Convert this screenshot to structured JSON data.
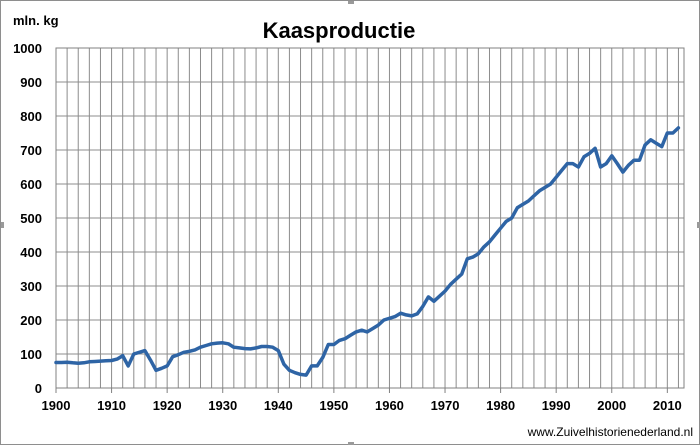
{
  "chart_data": {
    "type": "line",
    "title": "Kaasproductie",
    "ylabel": "mln. kg",
    "xlabel": "",
    "xlim": [
      1900,
      2013
    ],
    "ylim": [
      0,
      1000
    ],
    "x_ticks": [
      1900,
      1910,
      1920,
      1930,
      1940,
      1950,
      1960,
      1970,
      1980,
      1990,
      2000,
      2010
    ],
    "y_ticks": [
      0,
      100,
      200,
      300,
      400,
      500,
      600,
      700,
      800,
      900,
      1000
    ],
    "grid": true,
    "line_color": "#2e64a5",
    "source": "www.Zuivelhistorienederland.nl",
    "series": [
      {
        "x": [
          1900,
          1901,
          1902,
          1903,
          1904,
          1905,
          1906,
          1907,
          1908,
          1909,
          1910,
          1911,
          1912,
          1913,
          1914,
          1915,
          1916,
          1917,
          1918,
          1919,
          1920,
          1921,
          1922,
          1923,
          1924,
          1925,
          1926,
          1927,
          1928,
          1929,
          1930,
          1931,
          1932,
          1933,
          1934,
          1935,
          1936,
          1937,
          1938,
          1939,
          1940,
          1941,
          1942,
          1943,
          1944,
          1945,
          1946,
          1947,
          1948,
          1949,
          1950,
          1951,
          1952,
          1953,
          1954,
          1955,
          1956,
          1957,
          1958,
          1959,
          1960,
          1961,
          1962,
          1963,
          1964,
          1965,
          1966,
          1967,
          1968,
          1969,
          1970,
          1971,
          1972,
          1973,
          1974,
          1975,
          1976,
          1977,
          1978,
          1979,
          1980,
          1981,
          1982,
          1983,
          1984,
          1985,
          1986,
          1987,
          1988,
          1989,
          1990,
          1991,
          1992,
          1993,
          1994,
          1995,
          1996,
          1997,
          1998,
          1999,
          2000,
          2001,
          2002,
          2003,
          2004,
          2005,
          2006,
          2007,
          2008,
          2009,
          2010,
          2011,
          2012
        ],
        "values": [
          75,
          75,
          76,
          74,
          73,
          74,
          77,
          78,
          79,
          80,
          81,
          85,
          95,
          65,
          100,
          105,
          110,
          82,
          52,
          58,
          65,
          92,
          98,
          105,
          108,
          112,
          120,
          125,
          130,
          132,
          133,
          130,
          120,
          118,
          116,
          115,
          118,
          122,
          122,
          120,
          110,
          70,
          52,
          45,
          40,
          38,
          65,
          65,
          90,
          128,
          128,
          140,
          145,
          155,
          165,
          170,
          165,
          175,
          185,
          200,
          205,
          210,
          220,
          215,
          212,
          218,
          240,
          268,
          255,
          270,
          285,
          305,
          320,
          335,
          380,
          385,
          395,
          415,
          430,
          450,
          470,
          490,
          500,
          530,
          540,
          550,
          565,
          580,
          590,
          600,
          620,
          640,
          660,
          660,
          650,
          680,
          690,
          705,
          650,
          660,
          683,
          660,
          635,
          655,
          670,
          670,
          715,
          730,
          720,
          710,
          750,
          750,
          765
        ]
      }
    ]
  }
}
